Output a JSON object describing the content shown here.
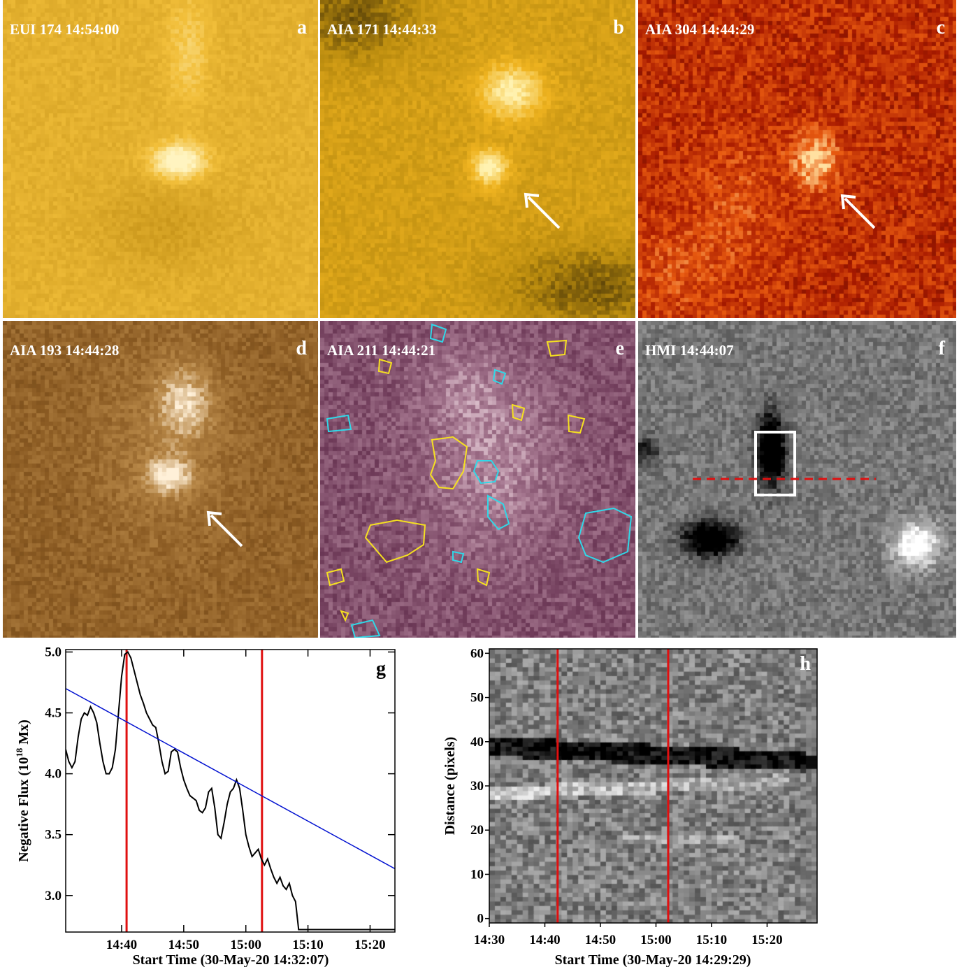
{
  "panels": [
    {
      "id": "a",
      "title": "EUI 174 14:54:00",
      "letter": "a",
      "colors": [
        "#7a5a10",
        "#c9961a",
        "#f2bf3a",
        "#fff4c0"
      ]
    },
    {
      "id": "b",
      "title": "AIA 171 14:44:33",
      "letter": "b",
      "colors": [
        "#2a1e05",
        "#b88a0e",
        "#f0b420",
        "#fff2b0"
      ]
    },
    {
      "id": "c",
      "title": "AIA 304 14:44:29",
      "letter": "c",
      "colors": [
        "#2a0000",
        "#a81a00",
        "#e85a10",
        "#ffe0a0"
      ]
    },
    {
      "id": "d",
      "title": "AIA 193 14:44:28",
      "letter": "d",
      "colors": [
        "#4a2a08",
        "#8a5a22",
        "#b88848",
        "#fff0d8"
      ]
    },
    {
      "id": "e",
      "title": "AIA 211 14:44:21",
      "letter": "e",
      "colors": [
        "#2a0a1e",
        "#6e3a58",
        "#a87a92",
        "#fff0f4"
      ]
    },
    {
      "id": "f",
      "title": "HMI 14:44:07",
      "letter": "f",
      "colors": [
        "#000000",
        "#555555",
        "#999999",
        "#ffffff"
      ]
    }
  ],
  "chart_data": [
    {
      "panel": "g",
      "type": "line",
      "letter": "g",
      "xlabel": "Start Time (30-May-20 14:32:07)",
      "ylabel": "Negative Flux (10",
      "ylabel_sup": "18",
      "ylabel_end": " Mx)",
      "xlim": [
        0,
        53
      ],
      "ylim": [
        2.7,
        5.02
      ],
      "xticks": [
        {
          "v": 9,
          "label": "14:40"
        },
        {
          "v": 19,
          "label": "14:50"
        },
        {
          "v": 29,
          "label": "15:00"
        },
        {
          "v": 39,
          "label": "15:10"
        },
        {
          "v": 49,
          "label": "15:20"
        }
      ],
      "yticks": [
        {
          "v": 3.0,
          "label": "3.0"
        },
        {
          "v": 3.5,
          "label": "3.5"
        },
        {
          "v": 4.0,
          "label": "4.0"
        },
        {
          "v": 4.5,
          "label": "4.5"
        },
        {
          "v": 5.0,
          "label": "5.0"
        }
      ],
      "vlines": [
        9.8,
        31.6
      ],
      "series": [
        {
          "color": "#000000",
          "x": [
            0,
            0.5,
            1,
            1.5,
            2,
            2.5,
            3,
            3.5,
            4,
            4.5,
            5,
            5.5,
            6,
            6.5,
            7,
            7.5,
            8,
            8.5,
            9,
            9.5,
            10,
            10.5,
            11,
            11.5,
            12,
            12.5,
            13,
            13.5,
            14,
            14.5,
            15,
            15.5,
            16,
            16.5,
            17,
            17.5,
            18,
            18.5,
            19,
            19.5,
            20,
            20.5,
            21,
            21.5,
            22,
            22.5,
            23,
            23.5,
            24,
            24.5,
            25,
            25.5,
            26,
            26.5,
            27,
            27.5,
            28,
            28.5,
            29,
            29.5,
            30,
            30.5,
            31,
            31.5,
            32,
            32.5,
            33,
            33.5,
            34,
            34.5,
            35,
            35.5,
            36,
            36.5,
            37,
            37.5,
            38,
            38.5,
            39,
            39.5,
            40,
            40.5,
            41,
            41.5,
            42,
            42.5,
            43,
            43.5,
            44,
            44.5,
            45,
            45.5,
            46,
            46.5,
            47,
            47.5,
            48,
            48.5,
            49,
            49.5,
            50,
            50.5,
            51,
            51.5,
            52,
            52.5,
            53
          ],
          "y": [
            4.2,
            4.1,
            4.05,
            4.1,
            4.3,
            4.45,
            4.5,
            4.48,
            4.55,
            4.5,
            4.42,
            4.25,
            4.1,
            4.0,
            4.0,
            4.05,
            4.2,
            4.5,
            4.8,
            4.98,
            5.0,
            4.95,
            4.85,
            4.75,
            4.65,
            4.58,
            4.5,
            4.45,
            4.4,
            4.38,
            4.25,
            4.1,
            4.0,
            4.02,
            4.18,
            4.2,
            4.18,
            4.05,
            3.95,
            3.88,
            3.82,
            3.8,
            3.78,
            3.7,
            3.68,
            3.72,
            3.85,
            3.88,
            3.72,
            3.5,
            3.47,
            3.6,
            3.75,
            3.85,
            3.88,
            3.95,
            3.88,
            3.7,
            3.5,
            3.4,
            3.32,
            3.35,
            3.38,
            3.3,
            3.25,
            3.3,
            3.22,
            3.15,
            3.1,
            3.15,
            3.08,
            3.05,
            3.1,
            3.0,
            2.95,
            2.72,
            2.72,
            2.72,
            2.72,
            2.72,
            2.72,
            2.72,
            2.72,
            2.72,
            2.72,
            2.72,
            2.72,
            2.72,
            2.72,
            2.72,
            2.72,
            2.72,
            2.72,
            2.72,
            2.72,
            2.72,
            2.72,
            2.72,
            2.72,
            2.72,
            2.72,
            2.72,
            2.72,
            2.72,
            2.72,
            2.72,
            2.72
          ]
        },
        {
          "color": "#0010d0",
          "x": [
            0,
            53
          ],
          "y": [
            4.7,
            3.22
          ]
        }
      ]
    },
    {
      "panel": "h",
      "type": "heatmap",
      "letter": "h",
      "xlabel": "Start Time (30-May-20 14:29:29)",
      "ylabel": "Distance (pixels)",
      "xlim": [
        0,
        59
      ],
      "ylim": [
        -1,
        61
      ],
      "xticks": [
        {
          "v": 0,
          "label": "14:30"
        },
        {
          "v": 10,
          "label": "14:40"
        },
        {
          "v": 20,
          "label": "14:50"
        },
        {
          "v": 30,
          "label": "15:00"
        },
        {
          "v": 40,
          "label": "15:10"
        },
        {
          "v": 50,
          "label": "15:20"
        }
      ],
      "yticks": [
        {
          "v": 0,
          "label": "0"
        },
        {
          "v": 10,
          "label": "10"
        },
        {
          "v": 20,
          "label": "20"
        },
        {
          "v": 30,
          "label": "30"
        },
        {
          "v": 40,
          "label": "40"
        },
        {
          "v": 50,
          "label": "50"
        },
        {
          "v": 60,
          "label": "60"
        }
      ],
      "vlines": [
        12.3,
        32.2
      ]
    }
  ]
}
